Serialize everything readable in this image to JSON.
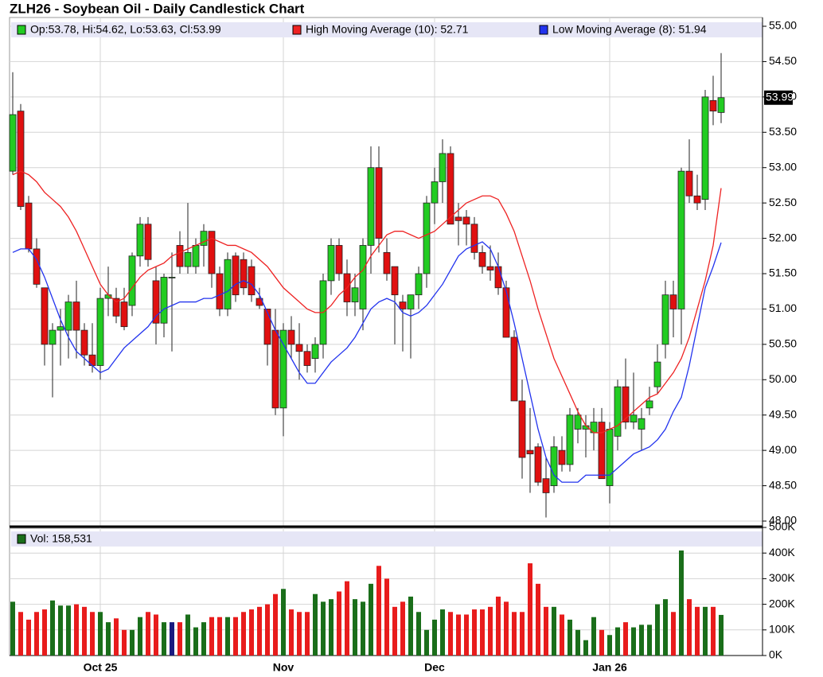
{
  "chart_data": [
    {
      "type": "candlestick",
      "title": "ZLH26 - Soybean Oil - Daily Candlestick Chart",
      "legend": "Op:53.78, Hi:54.62, Lo:53.63, Cl:53.99",
      "last_label": "53.99",
      "up_color": "#22cc22",
      "down_color": "#e01010",
      "grid": true,
      "ylim": [
        48,
        55
      ],
      "yticks": [
        {
          "value": 48,
          "label": "48.00"
        },
        {
          "value": 48.5,
          "label": "48.50"
        },
        {
          "value": 49,
          "label": "49.00"
        },
        {
          "value": 49.5,
          "label": "49.50"
        },
        {
          "value": 50,
          "label": "50.00"
        },
        {
          "value": 50.5,
          "label": "50.50"
        },
        {
          "value": 51,
          "label": "51.00"
        },
        {
          "value": 51.5,
          "label": "51.50"
        },
        {
          "value": 52,
          "label": "52.00"
        },
        {
          "value": 52.5,
          "label": "52.50"
        },
        {
          "value": 53,
          "label": "53.00"
        },
        {
          "value": 53.5,
          "label": "53.50"
        },
        {
          "value": 54,
          "label": "54.00"
        },
        {
          "value": 54.5,
          "label": "54.50"
        },
        {
          "value": 55,
          "label": "55.00"
        }
      ],
      "open": [
        52.95,
        53.8,
        52.5,
        51.85,
        51.3,
        50.5,
        50.7,
        50.7,
        51.1,
        50.7,
        50.35,
        50.2,
        51.15,
        51.15,
        51.1,
        51.05,
        51.75,
        52.2,
        51.4,
        50.8,
        51.45,
        51.9,
        51.6,
        51.6,
        51.9,
        52.1,
        51.5,
        51.0,
        51.75,
        51.7,
        51.6,
        51.15,
        51.0,
        50.7,
        49.6,
        50.7,
        50.5,
        50.4,
        50.3,
        50.5,
        51.4,
        51.9,
        51.5,
        51.1,
        51.0,
        51.9,
        53.0,
        51.8,
        51.6,
        51.1,
        51.0,
        51.2,
        51.5,
        52.5,
        52.8,
        53.2,
        52.3,
        52.3,
        52.2,
        51.8,
        51.6,
        51.6,
        51.3,
        50.6,
        49.7,
        49.0,
        49.05,
        48.6,
        48.5,
        49.0,
        48.8,
        49.3,
        49.3,
        49.25,
        49.4,
        48.5,
        49.2,
        49.9,
        49.4,
        49.3,
        49.6,
        49.9,
        50.5,
        51.2,
        51.0,
        52.95,
        52.6,
        52.55,
        53.95,
        53.78
      ],
      "high": [
        54.35,
        53.9,
        52.6,
        52.0,
        51.3,
        50.8,
        51.0,
        51.2,
        51.4,
        50.8,
        50.8,
        51.3,
        51.6,
        51.3,
        51.3,
        51.8,
        52.3,
        52.3,
        51.6,
        51.5,
        51.8,
        52.1,
        52.5,
        52.0,
        52.2,
        52.1,
        51.6,
        51.8,
        51.8,
        51.8,
        51.7,
        51.3,
        51.0,
        51.0,
        50.8,
        50.9,
        50.8,
        50.5,
        50.6,
        51.5,
        52.0,
        52.0,
        51.7,
        51.5,
        52.0,
        53.3,
        53.3,
        52.0,
        51.6,
        51.2,
        51.2,
        51.6,
        52.6,
        53.0,
        53.4,
        53.3,
        52.5,
        52.4,
        52.3,
        51.9,
        51.9,
        51.8,
        51.4,
        50.7,
        50.0,
        49.6,
        49.1,
        48.9,
        49.2,
        49.2,
        49.6,
        49.6,
        49.5,
        49.6,
        49.6,
        49.4,
        50.0,
        50.3,
        50.1,
        49.6,
        49.9,
        50.5,
        51.4,
        51.4,
        53.0,
        53.4,
        52.9,
        54.1,
        54.3,
        54.62
      ],
      "low": [
        52.9,
        52.4,
        51.8,
        51.3,
        50.2,
        49.75,
        50.2,
        50.3,
        50.3,
        50.2,
        50.1,
        50.0,
        50.9,
        50.8,
        50.7,
        50.9,
        51.6,
        51.6,
        50.5,
        50.6,
        50.4,
        51.5,
        51.5,
        51.5,
        51.6,
        51.3,
        50.9,
        50.9,
        51.1,
        51.2,
        51.1,
        51.0,
        50.2,
        49.5,
        49.2,
        50.3,
        50.0,
        50.1,
        50.1,
        50.3,
        51.2,
        51.4,
        50.9,
        50.9,
        50.7,
        51.5,
        51.8,
        51.4,
        50.5,
        50.4,
        50.3,
        51.0,
        51.3,
        52.2,
        52.5,
        52.2,
        51.9,
        51.9,
        51.7,
        51.5,
        51.4,
        51.2,
        50.6,
        49.7,
        48.6,
        48.4,
        48.5,
        48.05,
        48.4,
        48.7,
        48.7,
        49.1,
        48.9,
        49.0,
        48.6,
        48.25,
        49.0,
        49.3,
        49.3,
        49.0,
        49.5,
        49.8,
        50.3,
        50.6,
        50.5,
        52.5,
        52.4,
        52.4,
        53.6,
        53.63
      ],
      "close": [
        53.75,
        52.45,
        51.85,
        51.35,
        50.5,
        50.7,
        50.75,
        51.1,
        50.7,
        50.35,
        50.2,
        51.15,
        51.2,
        50.9,
        50.75,
        51.75,
        52.2,
        51.7,
        50.8,
        51.45,
        51.45,
        51.6,
        51.8,
        51.9,
        52.1,
        51.5,
        51.0,
        51.7,
        51.2,
        51.3,
        51.2,
        51.05,
        50.5,
        49.6,
        50.7,
        50.5,
        50.4,
        50.2,
        50.5,
        51.4,
        51.9,
        51.5,
        51.1,
        51.3,
        51.9,
        53.0,
        52.0,
        51.5,
        51.2,
        51.0,
        51.2,
        51.5,
        52.5,
        52.8,
        53.2,
        52.2,
        52.25,
        52.2,
        51.8,
        51.6,
        51.55,
        51.3,
        50.6,
        49.7,
        48.9,
        48.95,
        48.55,
        48.4,
        49.05,
        48.8,
        49.5,
        49.5,
        49.35,
        49.4,
        48.6,
        49.3,
        49.9,
        49.4,
        49.5,
        49.45,
        49.7,
        50.25,
        51.2,
        51.0,
        52.95,
        52.6,
        52.5,
        54.0,
        53.8,
        53.99
      ],
      "series": [
        {
          "name": "High Moving Average (10): 52.71",
          "color": "#ee2222",
          "values": [
            52.9,
            52.95,
            52.9,
            52.8,
            52.65,
            52.55,
            52.45,
            52.3,
            52.1,
            51.85,
            51.6,
            51.35,
            51.2,
            51.1,
            51.15,
            51.3,
            51.45,
            51.55,
            51.6,
            51.65,
            51.75,
            51.8,
            51.85,
            51.9,
            51.95,
            52.0,
            51.95,
            51.9,
            51.9,
            51.85,
            51.8,
            51.7,
            51.6,
            51.45,
            51.3,
            51.2,
            51.1,
            51.0,
            50.95,
            50.95,
            51.05,
            51.2,
            51.3,
            51.45,
            51.55,
            51.75,
            51.9,
            52.05,
            52.1,
            52.1,
            52.05,
            52.0,
            52.05,
            52.1,
            52.2,
            52.3,
            52.4,
            52.5,
            52.55,
            52.6,
            52.6,
            52.55,
            52.35,
            52.1,
            51.75,
            51.4,
            51.0,
            50.65,
            50.3,
            50.05,
            49.8,
            49.55,
            49.35,
            49.25,
            49.25,
            49.3,
            49.35,
            49.45,
            49.55,
            49.65,
            49.75,
            49.8,
            49.95,
            50.1,
            50.3,
            50.6,
            51.0,
            51.4,
            51.9,
            52.71
          ]
        },
        {
          "name": "Low Moving Average (8): 51.94",
          "color": "#2233ee",
          "values": [
            51.8,
            51.85,
            51.85,
            51.7,
            51.45,
            51.15,
            50.85,
            50.6,
            50.4,
            50.3,
            50.2,
            50.1,
            50.15,
            50.3,
            50.45,
            50.55,
            50.65,
            50.75,
            50.9,
            51.0,
            51.05,
            51.1,
            51.1,
            51.1,
            51.15,
            51.15,
            51.2,
            51.25,
            51.35,
            51.4,
            51.35,
            51.2,
            50.95,
            50.7,
            50.5,
            50.3,
            50.1,
            49.95,
            49.95,
            50.1,
            50.25,
            50.35,
            50.45,
            50.6,
            50.8,
            51.0,
            51.1,
            51.15,
            51.1,
            50.95,
            50.9,
            50.95,
            51.05,
            51.2,
            51.35,
            51.55,
            51.75,
            51.85,
            51.9,
            51.95,
            51.85,
            51.6,
            51.25,
            50.8,
            50.3,
            49.8,
            49.3,
            48.9,
            48.65,
            48.55,
            48.55,
            48.55,
            48.65,
            48.65,
            48.65,
            48.65,
            48.75,
            48.85,
            48.95,
            49.0,
            49.05,
            49.15,
            49.3,
            49.55,
            49.75,
            50.2,
            50.75,
            51.3,
            51.6,
            51.94
          ]
        }
      ]
    },
    {
      "type": "bar",
      "legend": "Vol: 158,531",
      "color": "#1a6e1a",
      "up_color": "#1a6e1a",
      "down_color": "#e81c1c",
      "flat_color": "#1a1a80",
      "ylim": [
        0,
        500000
      ],
      "yticks": [
        {
          "value": 0,
          "label": "0K"
        },
        {
          "value": 100000,
          "label": "100K"
        },
        {
          "value": 200000,
          "label": "200K"
        },
        {
          "value": 300000,
          "label": "300K"
        },
        {
          "value": 400000,
          "label": "400K"
        },
        {
          "value": 500000,
          "label": "500K"
        }
      ],
      "categories": [
        null,
        null,
        null,
        null,
        null,
        null,
        null,
        null,
        null,
        null,
        null,
        "Oct 25",
        null,
        null,
        null,
        null,
        null,
        null,
        null,
        null,
        null,
        null,
        null,
        null,
        null,
        null,
        null,
        null,
        null,
        null,
        null,
        null,
        null,
        null,
        "Nov",
        null,
        null,
        null,
        null,
        null,
        null,
        null,
        null,
        null,
        null,
        null,
        null,
        null,
        null,
        null,
        null,
        null,
        null,
        "Dec",
        null,
        null,
        null,
        null,
        null,
        null,
        null,
        null,
        null,
        null,
        null,
        null,
        null,
        null,
        null,
        null,
        null,
        null,
        null,
        null,
        null,
        "Jan 26",
        null,
        null,
        null,
        null,
        null,
        null,
        null,
        null,
        null,
        null,
        null,
        null,
        null,
        null
      ],
      "values": [
        210000,
        170000,
        140000,
        170000,
        180000,
        215000,
        195000,
        195000,
        200000,
        190000,
        170000,
        170000,
        130000,
        145000,
        100000,
        100000,
        150000,
        170000,
        160000,
        130000,
        130000,
        130000,
        160000,
        110000,
        130000,
        150000,
        150000,
        150000,
        150000,
        170000,
        180000,
        190000,
        200000,
        240000,
        260000,
        180000,
        170000,
        170000,
        240000,
        210000,
        220000,
        250000,
        290000,
        220000,
        210000,
        280000,
        350000,
        300000,
        190000,
        210000,
        230000,
        170000,
        100000,
        140000,
        180000,
        170000,
        160000,
        160000,
        180000,
        180000,
        190000,
        230000,
        210000,
        170000,
        170000,
        360000,
        280000,
        190000,
        190000,
        160000,
        140000,
        100000,
        60000,
        150000,
        100000,
        80000,
        110000,
        130000,
        110000,
        120000,
        120000,
        200000,
        220000,
        170000,
        410000,
        220000,
        190000,
        190000,
        190000,
        158531
      ]
    }
  ]
}
